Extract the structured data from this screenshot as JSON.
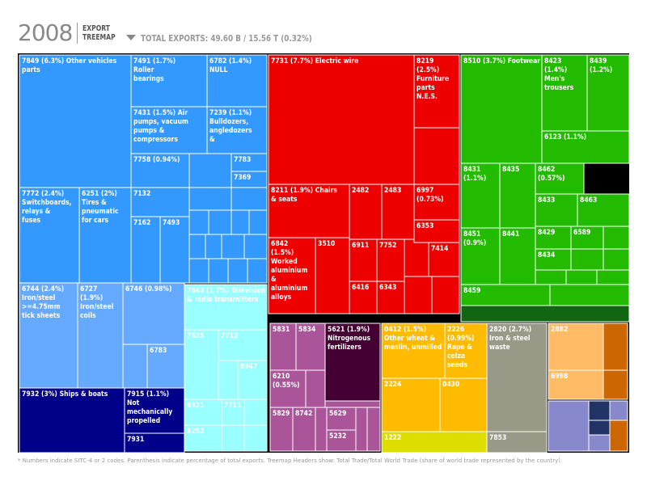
{
  "header": {
    "year": "2008",
    "title_line1": "EXPORT",
    "title_line2": "TREEMAP",
    "total": "TOTAL EXPORTS: 49.60 B / 15.56 T (0.32%)"
  },
  "footnote": "* Numbers indicate SITC-4 or 2 codes. Parenthesis indicate percentage of total exports. Treemap Headers show: Total Trade/Total World Trade (share of world trade represented by the country).",
  "colors": {
    "machinery": "#3399ff",
    "machinery_light": "#66aaff",
    "transport": "#000088",
    "electronics": "#99ffff",
    "manufactured": "#ee0000",
    "textiles": "#22bb00",
    "textiles_dark": "#116611",
    "chemicals": "#aa5599",
    "chemicals_dark": "#440033",
    "food": "#ffbb00",
    "food_yellow": "#dddd00",
    "metals": "#999988",
    "misc_orange": "#ffbb66",
    "misc_dark_orange": "#cc6600",
    "misc_purple": "#8888cc",
    "misc_navy": "#223366"
  },
  "chart_data": {
    "type": "treemap",
    "title": "EXPORT TREEMAP",
    "items": [
      {
        "label": "7849 (6.3%) Other vehicles parts",
        "code": "7849",
        "share": 6.3
      },
      {
        "label": "7491 (1.7%) Roller bearings",
        "code": "7491",
        "share": 1.7
      },
      {
        "label": "6782 (1.4%) NULL",
        "code": "6782",
        "share": 1.4
      },
      {
        "label": "7431 (1.5%) Air pumps, vacuum pumps & compressors",
        "code": "7431",
        "share": 1.5
      },
      {
        "label": "7239 (1.1%) Bulldozers, angledozers &",
        "code": "7239",
        "share": 1.1
      },
      {
        "label": "7758 (0.94%)",
        "code": "7758",
        "share": 0.94
      },
      {
        "label": "7783",
        "code": "7783"
      },
      {
        "label": "7369",
        "code": "7369"
      },
      {
        "label": "7772 (2.4%) Switchboards, relays & fuses",
        "code": "7772",
        "share": 2.4
      },
      {
        "label": "6251 (2%) Tires & pneumatic for cars",
        "code": "6251",
        "share": 2.0
      },
      {
        "label": "7132",
        "code": "7132"
      },
      {
        "label": "7162",
        "code": "7162"
      },
      {
        "label": "7493",
        "code": "7493"
      },
      {
        "label": "6744 (2.4%) Iron/steel >=4.75mm tick sheets",
        "code": "6744",
        "share": 2.4
      },
      {
        "label": "6727 (1.9%) Iron/steel coils",
        "code": "6727",
        "share": 1.9
      },
      {
        "label": "6746 (0.98%)",
        "code": "6746",
        "share": 0.98
      },
      {
        "label": "6783",
        "code": "6783"
      },
      {
        "label": "7643 (1.7%) Television & radio transmitters",
        "code": "7643",
        "share": 1.7
      },
      {
        "label": "7525",
        "code": "7525"
      },
      {
        "label": "7712",
        "code": "7712"
      },
      {
        "label": "8947",
        "code": "8947"
      },
      {
        "label": "6931",
        "code": "6931"
      },
      {
        "label": "7711",
        "code": "7711"
      },
      {
        "label": "6252",
        "code": "6252"
      },
      {
        "label": "7932 (3%) Ships & boats",
        "code": "7932",
        "share": 3.0
      },
      {
        "label": "7915 (1.1%) Not mechanically propelled railway for freight",
        "code": "7915",
        "share": 1.1
      },
      {
        "label": "7931",
        "code": "7931"
      },
      {
        "label": "7731 (7.7%) Electric wire",
        "code": "7731",
        "share": 7.7
      },
      {
        "label": "8219 (2.5%) Furniture parts N.E.S.",
        "code": "8219",
        "share": 2.5
      },
      {
        "label": "8211 (1.9%) Chairs & seats",
        "code": "8211",
        "share": 1.9
      },
      {
        "label": "2482",
        "code": "2482"
      },
      {
        "label": "2483",
        "code": "2483"
      },
      {
        "label": "6997 (0.73%)",
        "code": "6997",
        "share": 0.73
      },
      {
        "label": "6353",
        "code": "6353"
      },
      {
        "label": "6842 (1.5%) Worked aluminium & aluminium alloys",
        "code": "6842",
        "share": 1.5
      },
      {
        "label": "3510",
        "code": "3510"
      },
      {
        "label": "6911",
        "code": "6911"
      },
      {
        "label": "7752",
        "code": "7752"
      },
      {
        "label": "7414",
        "code": "7414"
      },
      {
        "label": "6416",
        "code": "6416"
      },
      {
        "label": "6343",
        "code": "6343"
      },
      {
        "label": "8510 (3.7%) Footwear",
        "code": "8510",
        "share": 3.7
      },
      {
        "label": "8423 (1.4%) Men's trousers",
        "code": "8423",
        "share": 1.4
      },
      {
        "label": "8439 (1.2%)",
        "code": "8439",
        "share": 1.2
      },
      {
        "label": "6123 (1.1%)",
        "code": "6123",
        "share": 1.1
      },
      {
        "label": "8431 (1.1%)",
        "code": "8431",
        "share": 1.1
      },
      {
        "label": "8435",
        "code": "8435"
      },
      {
        "label": "8462 (0.57%)",
        "code": "8462",
        "share": 0.57
      },
      {
        "label": "8433",
        "code": "8433"
      },
      {
        "label": "8463",
        "code": "8463"
      },
      {
        "label": "8451 (0.9%)",
        "code": "8451",
        "share": 0.9
      },
      {
        "label": "8441",
        "code": "8441"
      },
      {
        "label": "8429",
        "code": "8429"
      },
      {
        "label": "6589",
        "code": "6589"
      },
      {
        "label": "8434",
        "code": "8434"
      },
      {
        "label": "8459",
        "code": "8459"
      },
      {
        "label": "5831",
        "code": "5831"
      },
      {
        "label": "5834",
        "code": "5834"
      },
      {
        "label": "5621 (1.9%) Nitrogenous fertilizers",
        "code": "5621",
        "share": 1.9
      },
      {
        "label": "6210 (0.55%)",
        "code": "6210",
        "share": 0.55
      },
      {
        "label": "5829",
        "code": "5829"
      },
      {
        "label": "8742",
        "code": "8742"
      },
      {
        "label": "5629",
        "code": "5629"
      },
      {
        "label": "5232",
        "code": "5232"
      },
      {
        "label": "0412 (1.5%) Other wheat & meslin, unmilled",
        "code": "0412",
        "share": 1.5
      },
      {
        "label": "2226 (0.99%) Rape & colza seeds",
        "code": "2226",
        "share": 0.99
      },
      {
        "label": "2224",
        "code": "2224"
      },
      {
        "label": "0430",
        "code": "0430"
      },
      {
        "label": "1222",
        "code": "1222"
      },
      {
        "label": "2820 (2.7%) Iron & steel waste",
        "code": "2820",
        "share": 2.7
      },
      {
        "label": "7853",
        "code": "7853"
      },
      {
        "label": "2882",
        "code": "2882"
      },
      {
        "label": "6998",
        "code": "6998"
      }
    ]
  }
}
